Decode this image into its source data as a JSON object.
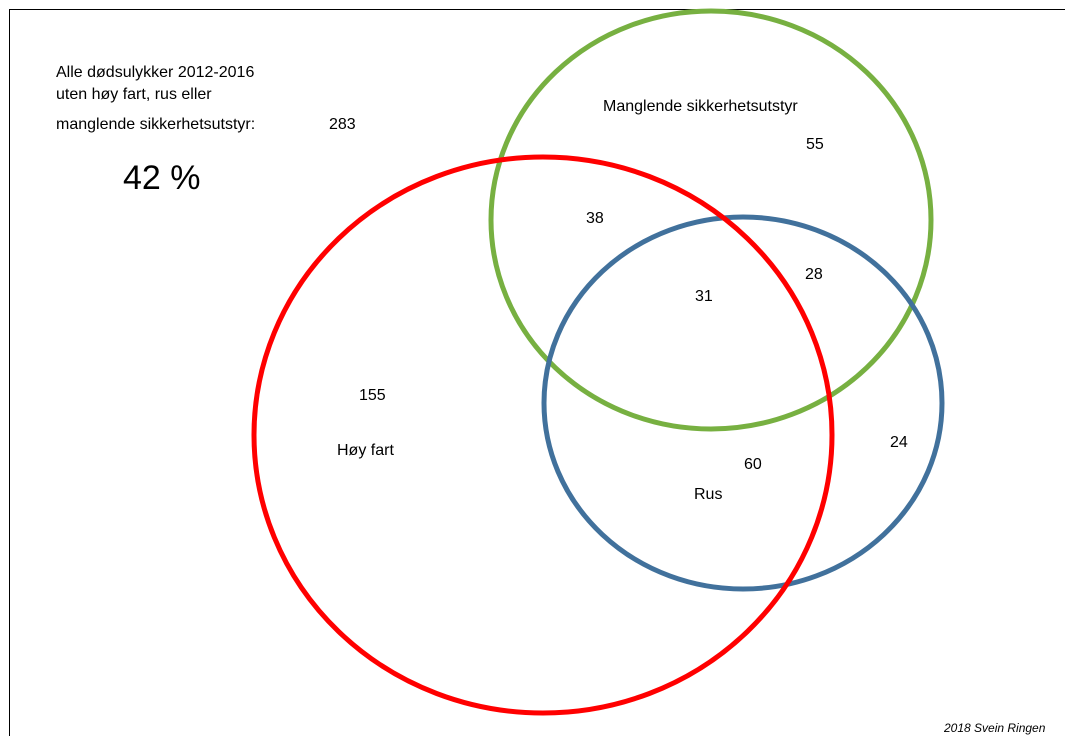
{
  "diagram": {
    "summary_lines": [
      "Alle dødsulykker 2012-2016",
      "uten høy fart, rus eller",
      "manglende sikkerhetsutstyr:"
    ],
    "summary_count": "283",
    "summary_percent": "42 %",
    "sets": [
      {
        "label": "Høy fart",
        "color": "#ff0000"
      },
      {
        "label": "Manglende sikkerhetsutstyr",
        "color": "#77b041"
      },
      {
        "label": "Rus",
        "color": "#41719c"
      }
    ],
    "regions": {
      "hoy_fart_only": "155",
      "sikkerhetsutstyr_only": "55",
      "rus_only": "24",
      "hoy_fart_and_sikkerhetsutstyr": "38",
      "sikkerhetsutstyr_and_rus": "28",
      "hoy_fart_and_rus": "60",
      "all_three": "31"
    },
    "credit": "2018 Svein Ringen"
  }
}
